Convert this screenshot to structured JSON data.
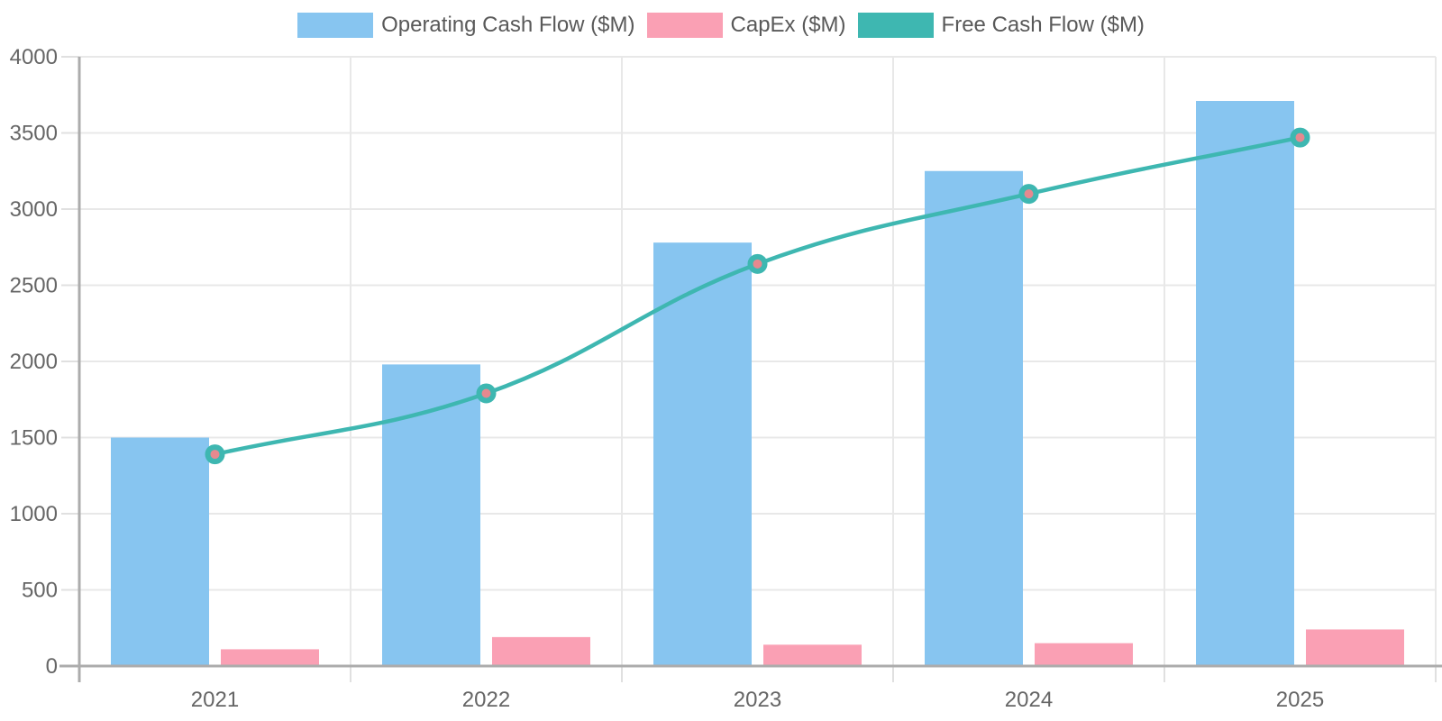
{
  "chart_data": {
    "type": "bar",
    "subtype": "grouped-bars-with-line-overlay",
    "categories": [
      "2021",
      "2022",
      "2023",
      "2024",
      "2025"
    ],
    "series": [
      {
        "name": "Operating Cash Flow ($M)",
        "type": "bar",
        "color": "#87C5F0",
        "values": [
          1500,
          1980,
          2780,
          3250,
          3710
        ]
      },
      {
        "name": "CapEx ($M)",
        "type": "bar",
        "color": "#FAA0B4",
        "values": [
          110,
          190,
          140,
          150,
          240
        ]
      },
      {
        "name": "Free Cash Flow ($M)",
        "type": "line",
        "color": "#3EB7B1",
        "point_fill": "#E6898F",
        "values": [
          1390,
          1790,
          2640,
          3100,
          3470
        ]
      }
    ],
    "title": "",
    "xlabel": "",
    "ylabel": "",
    "ylim": [
      0,
      4000
    ],
    "ytick_step": 500,
    "ytick_labels": [
      "0",
      "500",
      "1000",
      "1500",
      "2000",
      "2500",
      "3000",
      "3500",
      "4000"
    ],
    "grid": true,
    "legend_position": "top"
  },
  "appearance": {
    "axis_color": "#ACACAC",
    "grid_color": "#E8E8E8",
    "tick_color": "#E0E0E0",
    "tick_label_color": "#666666",
    "legend_text_color": "#595959",
    "background": "#FFFFFF"
  }
}
